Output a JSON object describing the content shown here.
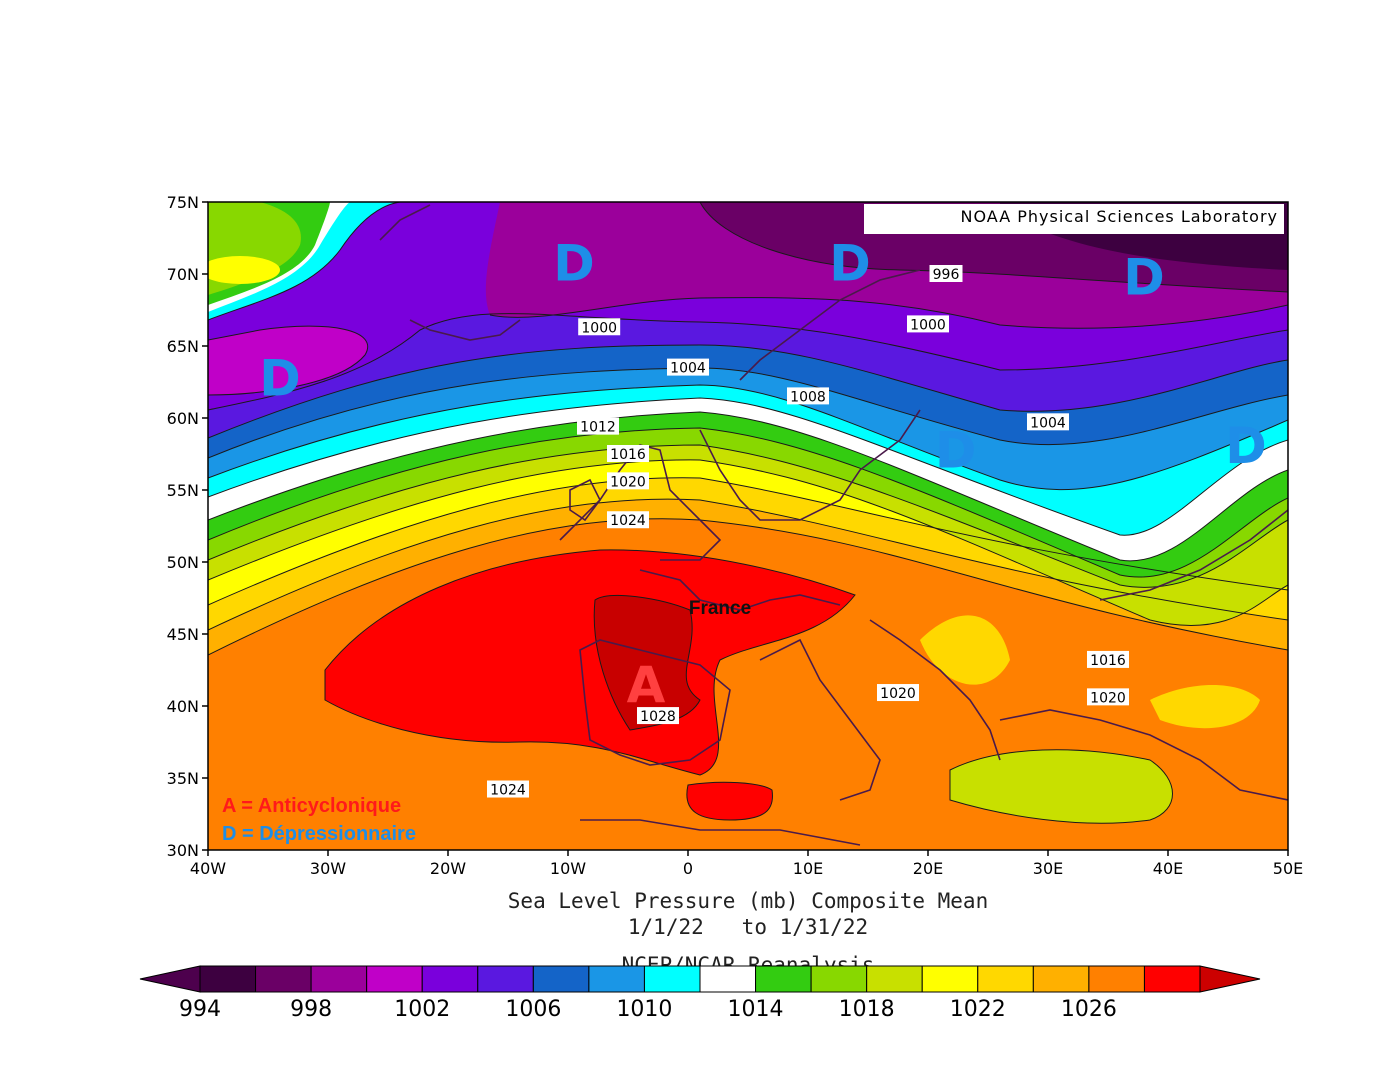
{
  "map": {
    "credit": "NOAA Physical Sciences Laboratory",
    "lat_ticks": [
      "75N",
      "70N",
      "65N",
      "60N",
      "55N",
      "50N",
      "45N",
      "40N",
      "35N",
      "30N"
    ],
    "lon_ticks": [
      "40W",
      "30W",
      "20W",
      "10W",
      "0",
      "10E",
      "20E",
      "30E",
      "40E",
      "50E"
    ],
    "lat_range": [
      30,
      75
    ],
    "lon_range": [
      -40,
      50
    ],
    "country_label": "France",
    "legend": {
      "high": "A = Anticyclonique",
      "low": "D = Dépressionnaire",
      "high_color": "#ff1a1a",
      "low_color": "#1e8ee8"
    },
    "isobar_labels": [
      {
        "text": "996",
        "lon": 21.5,
        "lat": 70.0
      },
      {
        "text": "1000",
        "lon": -7.4,
        "lat": 66.3
      },
      {
        "text": "1000",
        "lon": 20.0,
        "lat": 66.5
      },
      {
        "text": "1004",
        "lon": 0.0,
        "lat": 63.5
      },
      {
        "text": "1004",
        "lon": 30.0,
        "lat": 59.7
      },
      {
        "text": "1008",
        "lon": 10.0,
        "lat": 61.5
      },
      {
        "text": "1012",
        "lon": -7.5,
        "lat": 59.4
      },
      {
        "text": "1016",
        "lon": -5.0,
        "lat": 57.5
      },
      {
        "text": "1020",
        "lon": -5.0,
        "lat": 55.6
      },
      {
        "text": "1024",
        "lon": -5.0,
        "lat": 52.9
      },
      {
        "text": "1024",
        "lon": -15.0,
        "lat": 34.2
      },
      {
        "text": "1028",
        "lon": -2.5,
        "lat": 39.3
      },
      {
        "text": "1020",
        "lon": 17.5,
        "lat": 40.9
      },
      {
        "text": "1016",
        "lon": 35.0,
        "lat": 43.2
      },
      {
        "text": "1020",
        "lon": 35.0,
        "lat": 40.6
      }
    ],
    "markers": [
      {
        "type": "D",
        "lon": -34.0,
        "lat": 62.5
      },
      {
        "type": "D",
        "lon": -9.5,
        "lat": 70.5
      },
      {
        "type": "D",
        "lon": 13.5,
        "lat": 70.5
      },
      {
        "type": "D",
        "lon": 22.3,
        "lat": 57.5
      },
      {
        "type": "D",
        "lon": 38.0,
        "lat": 69.5
      },
      {
        "type": "D",
        "lon": 46.5,
        "lat": 57.8
      },
      {
        "type": "A",
        "lon": -3.5,
        "lat": 41.2
      }
    ]
  },
  "caption": {
    "line1": "Sea Level Pressure (mb) Composite Mean",
    "line2": "1/1/22   to 1/31/22",
    "line3": "NCEP/NCAR Reanalysis"
  },
  "colorbar": {
    "labels": [
      "994",
      "998",
      "1002",
      "1006",
      "1010",
      "1014",
      "1018",
      "1022",
      "1026"
    ],
    "colors": [
      "#3d0040",
      "#6a0066",
      "#9b009b",
      "#c000c8",
      "#7a00dc",
      "#5a18e0",
      "#1464c8",
      "#1a96e6",
      "#00ffff",
      "#ffffff",
      "#33cc11",
      "#88d800",
      "#c8e000",
      "#ffff00",
      "#ffd800",
      "#ffb000",
      "#ff8000",
      "#ff0000"
    ],
    "low_arrow": "#4d004d",
    "high_arrow": "#cc0000"
  }
}
